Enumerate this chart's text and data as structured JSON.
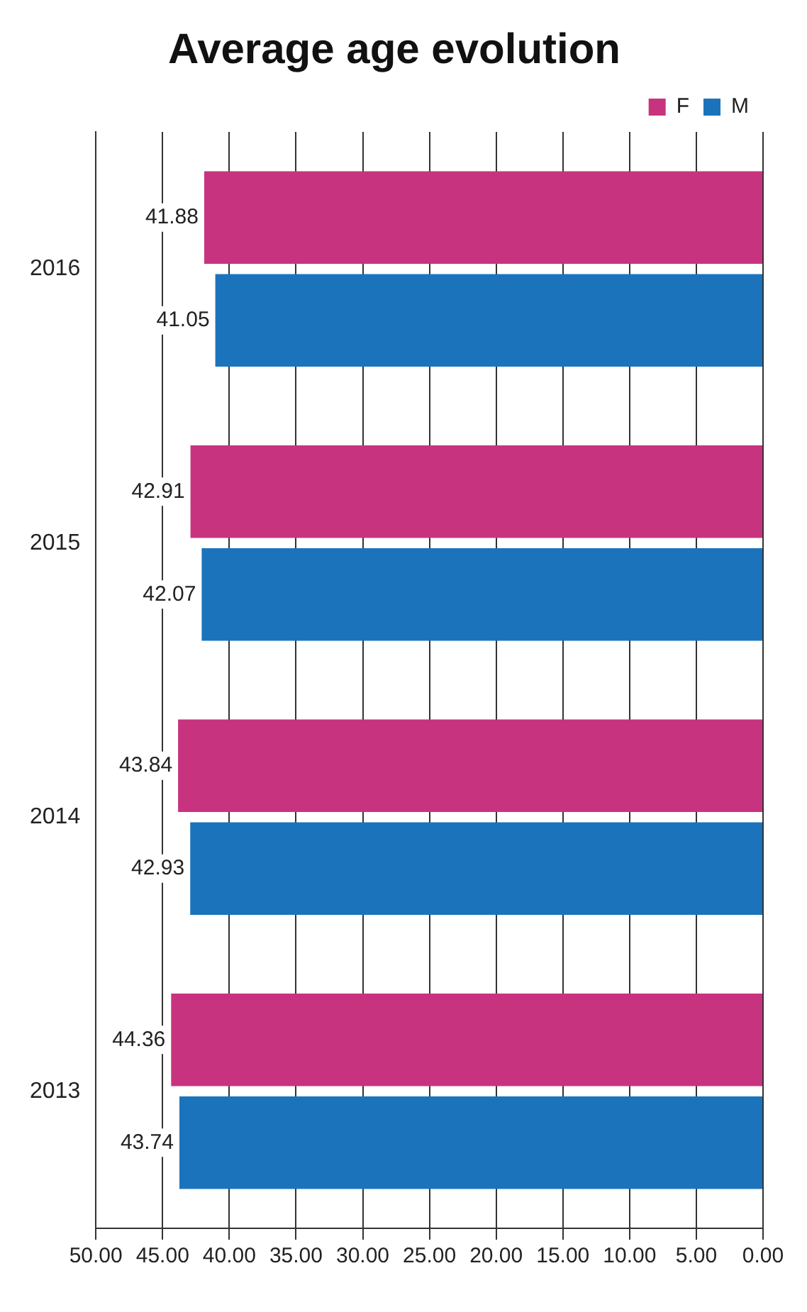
{
  "chart_data": {
    "type": "bar",
    "orientation": "horizontal",
    "title": "Average age evolution",
    "categories": [
      "2016",
      "2015",
      "2014",
      "2013"
    ],
    "series": [
      {
        "name": "F",
        "color": "#c8337f",
        "values": [
          41.88,
          42.91,
          43.84,
          44.36
        ]
      },
      {
        "name": "M",
        "color": "#1b74bb",
        "values": [
          41.05,
          42.07,
          42.93,
          43.74
        ]
      }
    ],
    "xlim": [
      50,
      0
    ],
    "xticks": [
      {
        "value": 50,
        "label": "50.00"
      },
      {
        "value": 45,
        "label": "45.00"
      },
      {
        "value": 40,
        "label": "40.00"
      },
      {
        "value": 35,
        "label": "35.00"
      },
      {
        "value": 30,
        "label": "30.00"
      },
      {
        "value": 25,
        "label": "25.00"
      },
      {
        "value": 20,
        "label": "20.00"
      },
      {
        "value": 15,
        "label": "15.00"
      },
      {
        "value": 10,
        "label": "10.00"
      },
      {
        "value": 5,
        "label": "5.00"
      },
      {
        "value": 0,
        "label": "0.00"
      }
    ],
    "grid": "x",
    "legend": "top right",
    "data_labels": true
  }
}
